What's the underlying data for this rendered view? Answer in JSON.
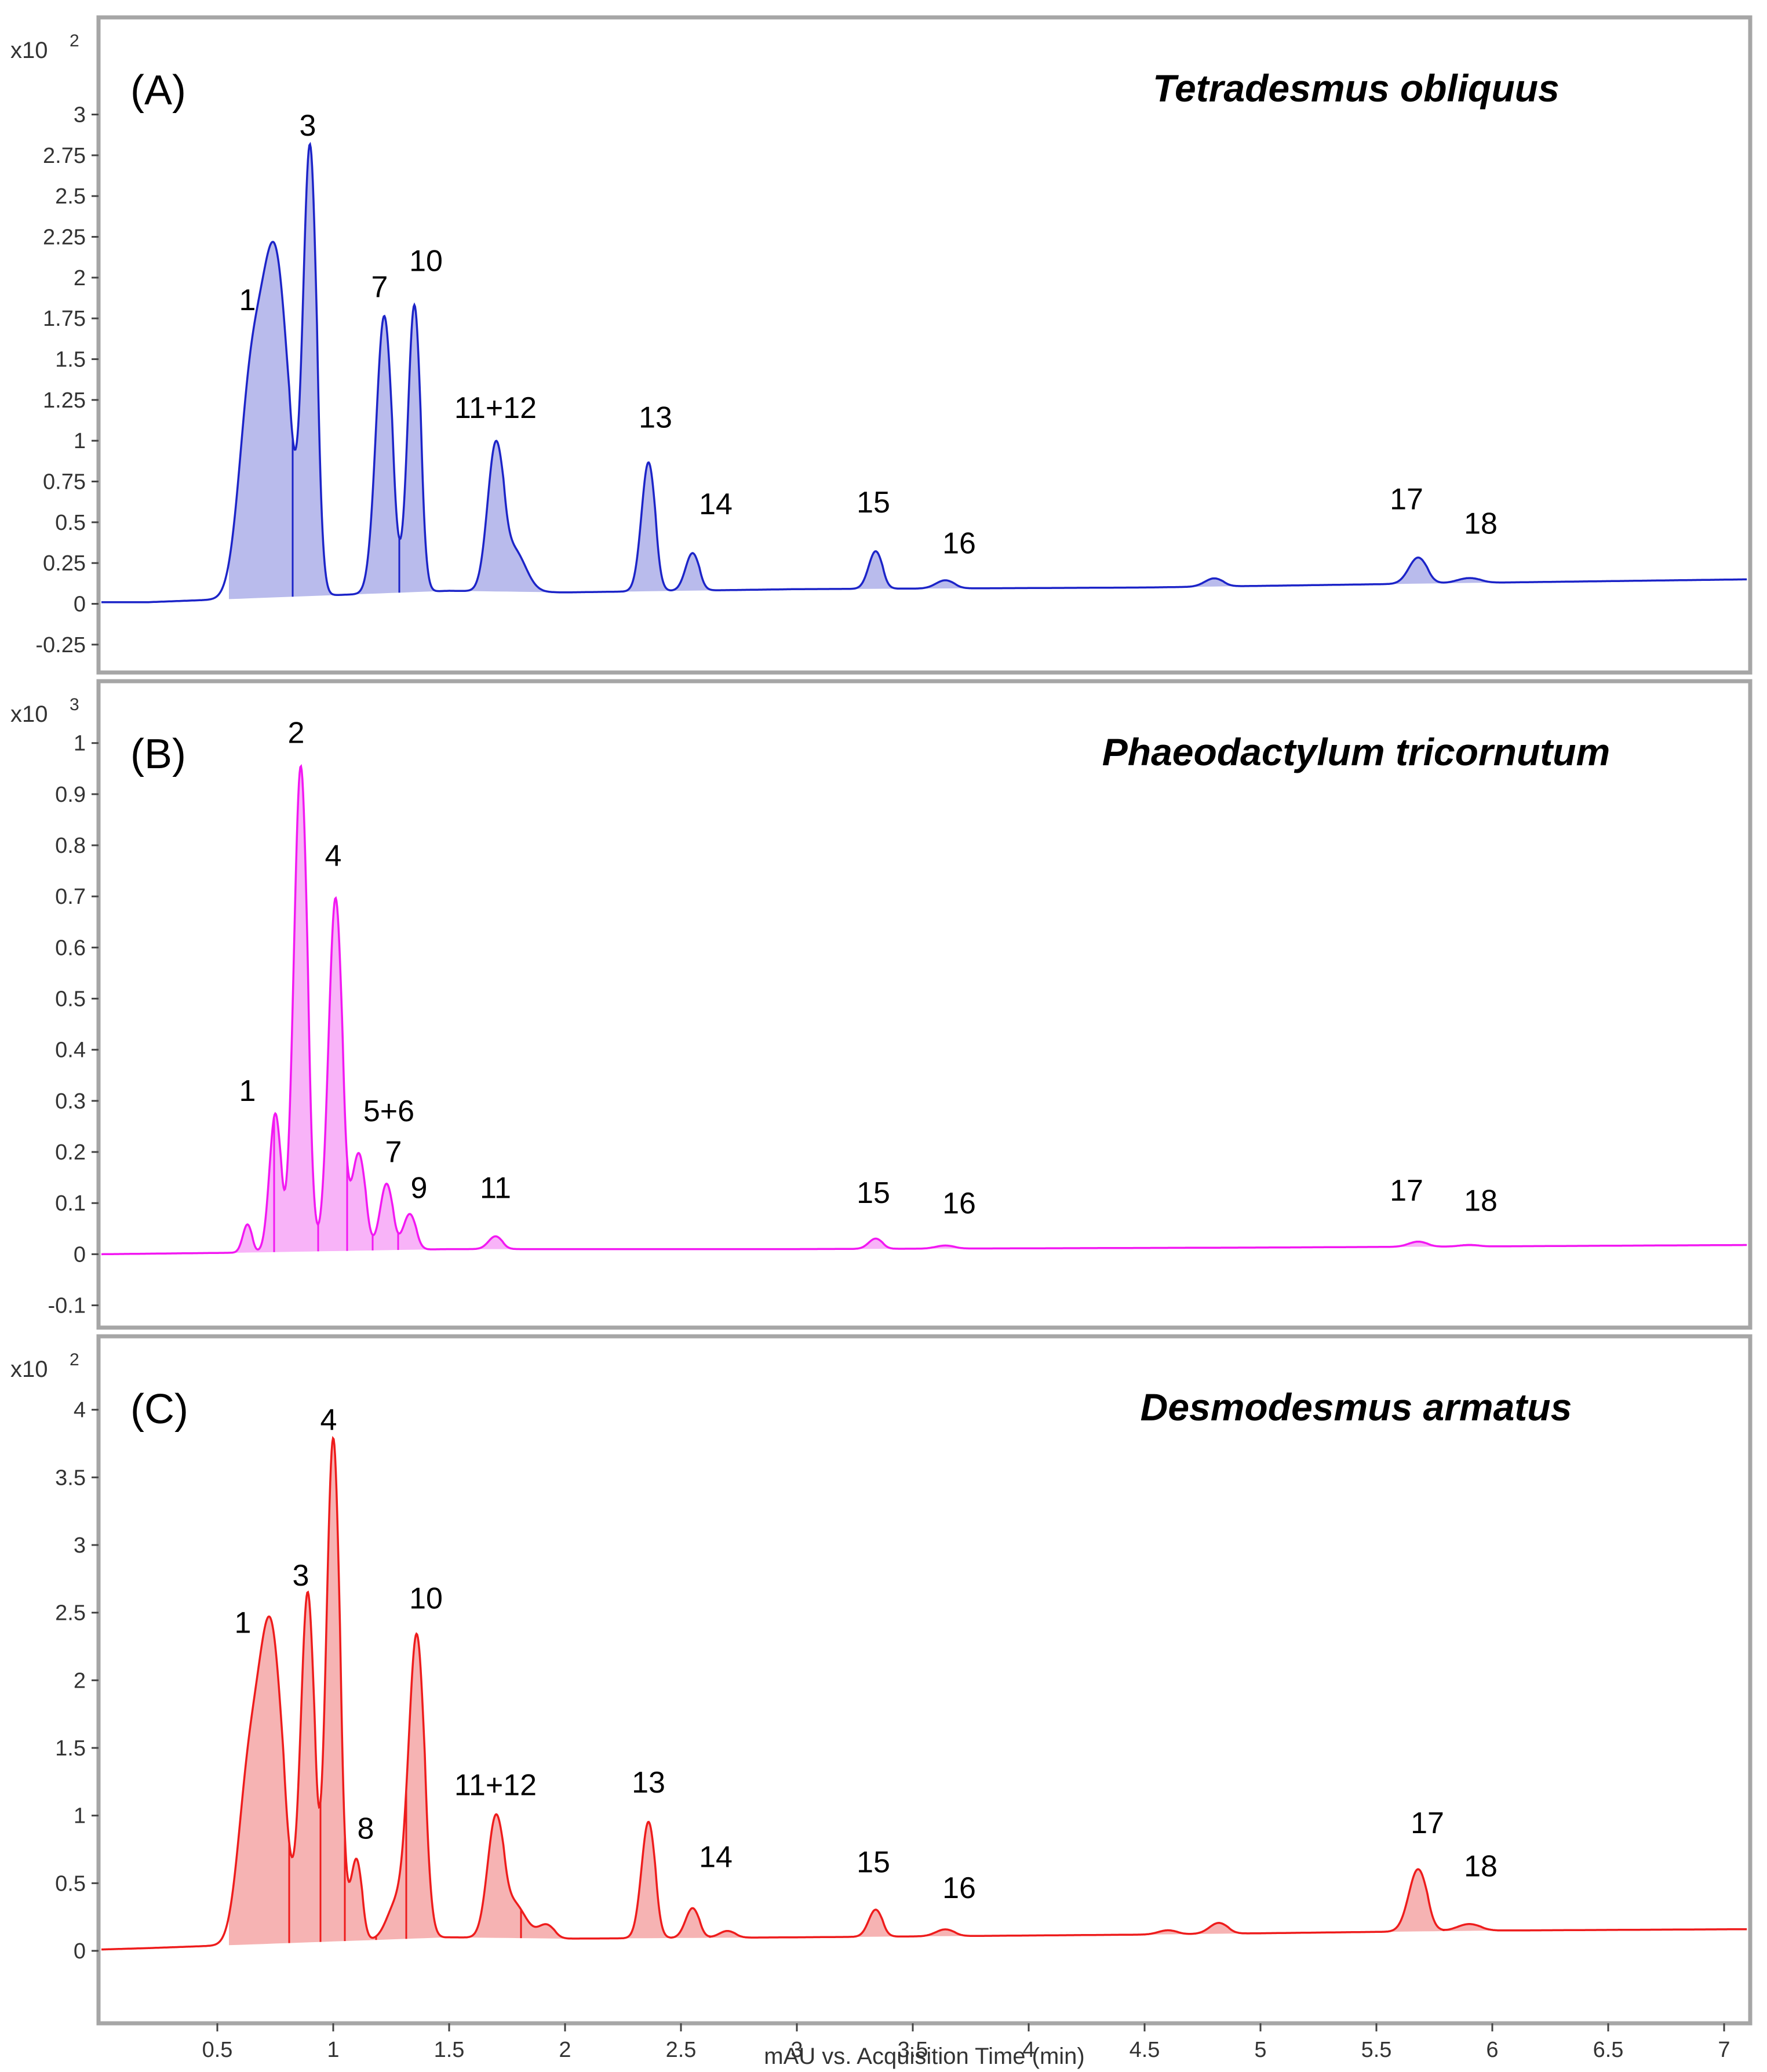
{
  "chart_data": [
    {
      "type": "area",
      "panel": "(A)",
      "title": "Tetradesmus obliquus",
      "multiplier_label": "x10",
      "multiplier_exp": "2",
      "color": "#1c24c8",
      "fill": "#b9bbec",
      "xlim": [
        0,
        7.1
      ],
      "ylim": [
        -0.35,
        3.4
      ],
      "yticks": [
        "-0.25",
        "0",
        "0.25",
        "0.5",
        "0.75",
        "1",
        "1.25",
        "1.5",
        "1.75",
        "2",
        "2.25",
        "2.5",
        "2.75",
        "3"
      ],
      "baseline": [
        [
          0,
          0.01
        ],
        [
          0.2,
          0.01
        ],
        [
          1.5,
          0.08
        ],
        [
          2.0,
          0.07
        ],
        [
          3.0,
          0.09
        ],
        [
          4.5,
          0.1
        ],
        [
          6.0,
          0.13
        ],
        [
          7.1,
          0.15
        ]
      ],
      "peaks": [
        {
          "label": "1",
          "x": 0.75,
          "h": 2.06,
          "w": 0.06,
          "text_x": 0.63,
          "text_y": 1.8,
          "shoulder": {
            "x": 0.64,
            "h": 1.1,
            "w": 0.05
          }
        },
        {
          "label": "3",
          "x": 0.9,
          "h": 2.72,
          "w": 0.03,
          "text_x": 0.89,
          "text_y": 2.87
        },
        {
          "label": "7",
          "x": 1.22,
          "h": 1.7,
          "w": 0.035,
          "text_x": 1.2,
          "text_y": 1.88
        },
        {
          "label": "10",
          "x": 1.35,
          "h": 1.76,
          "w": 0.028,
          "text_x": 1.4,
          "text_y": 2.04
        },
        {
          "label": "11+12",
          "x": 1.7,
          "h": 0.85,
          "w": 0.035,
          "text_x": 1.7,
          "text_y": 1.14,
          "shoulder": {
            "x": 1.78,
            "h": 0.25,
            "w": 0.05
          }
        },
        {
          "label": "13",
          "x": 2.36,
          "h": 0.79,
          "w": 0.03,
          "text_x": 2.39,
          "text_y": 1.08
        },
        {
          "label": "14",
          "x": 2.55,
          "h": 0.23,
          "w": 0.03,
          "text_x": 2.65,
          "text_y": 0.55
        },
        {
          "label": "15",
          "x": 3.34,
          "h": 0.23,
          "w": 0.03,
          "text_x": 3.33,
          "text_y": 0.56
        },
        {
          "label": "16",
          "x": 3.64,
          "h": 0.05,
          "w": 0.04,
          "text_x": 3.7,
          "text_y": 0.31
        },
        {
          "label": "",
          "x": 4.8,
          "h": 0.05,
          "w": 0.04
        },
        {
          "label": "17",
          "x": 5.68,
          "h": 0.16,
          "w": 0.04,
          "text_x": 5.63,
          "text_y": 0.58
        },
        {
          "label": "18",
          "x": 5.9,
          "h": 0.03,
          "w": 0.05,
          "text_x": 5.95,
          "text_y": 0.43
        }
      ]
    },
    {
      "type": "area",
      "panel": "(B)",
      "title": "Phaeodactylum tricornutum",
      "multiplier_label": "x10",
      "multiplier_exp": "3",
      "color": "#f218f2",
      "fill": "#f8b3f8",
      "xlim": [
        0,
        7.1
      ],
      "ylim": [
        -0.13,
        1.07
      ],
      "yticks": [
        "-0.1",
        "0",
        "0.1",
        "0.2",
        "0.3",
        "0.4",
        "0.5",
        "0.6",
        "0.7",
        "0.8",
        "0.9",
        "1"
      ],
      "baseline": [
        [
          0,
          0.0
        ],
        [
          0.6,
          0.003
        ],
        [
          1.5,
          0.01
        ],
        [
          3.0,
          0.01
        ],
        [
          5.0,
          0.013
        ],
        [
          7.1,
          0.018
        ]
      ],
      "peaks": [
        {
          "label": "1",
          "x": 0.75,
          "h": 0.27,
          "w": 0.025,
          "text_x": 0.63,
          "text_y": 0.3
        },
        {
          "label": "",
          "x": 0.63,
          "h": 0.055,
          "w": 0.02
        },
        {
          "label": "2",
          "x": 0.86,
          "h": 0.95,
          "w": 0.03,
          "text_x": 0.84,
          "text_y": 1.0
        },
        {
          "label": "4",
          "x": 1.01,
          "h": 0.69,
          "w": 0.03,
          "text_x": 1.0,
          "text_y": 0.76
        },
        {
          "label": "5+6",
          "x": 1.11,
          "h": 0.19,
          "w": 0.03,
          "text_x": 1.24,
          "text_y": 0.26
        },
        {
          "label": "7",
          "x": 1.23,
          "h": 0.13,
          "w": 0.028,
          "text_x": 1.26,
          "text_y": 0.18
        },
        {
          "label": "9",
          "x": 1.33,
          "h": 0.07,
          "w": 0.028,
          "text_x": 1.37,
          "text_y": 0.11
        },
        {
          "label": "11",
          "x": 1.7,
          "h": 0.025,
          "w": 0.03,
          "text_x": 1.7,
          "text_y": 0.11
        },
        {
          "label": "15",
          "x": 3.34,
          "h": 0.02,
          "w": 0.03,
          "text_x": 3.33,
          "text_y": 0.1
        },
        {
          "label": "16",
          "x": 3.64,
          "h": 0.006,
          "w": 0.04,
          "text_x": 3.7,
          "text_y": 0.08
        },
        {
          "label": "17",
          "x": 5.68,
          "h": 0.01,
          "w": 0.04,
          "text_x": 5.63,
          "text_y": 0.105
        },
        {
          "label": "18",
          "x": 5.9,
          "h": 0.003,
          "w": 0.04,
          "text_x": 5.95,
          "text_y": 0.085
        }
      ]
    },
    {
      "type": "area",
      "panel": "(C)",
      "title": "Desmodesmus armatus",
      "multiplier_label": "x10",
      "multiplier_exp": "2",
      "color": "#ee1c1c",
      "fill": "#f6b3b3",
      "xlim": [
        0,
        7.1
      ],
      "ylim": [
        -0.45,
        4.35
      ],
      "yticks": [
        "0",
        "0.5",
        "1",
        "1.5",
        "2",
        "2.5",
        "3",
        "3.5",
        "4"
      ],
      "baseline": [
        [
          0,
          0.01
        ],
        [
          0.2,
          0.02
        ],
        [
          1.5,
          0.1
        ],
        [
          2.0,
          0.09
        ],
        [
          3.0,
          0.1
        ],
        [
          4.5,
          0.12
        ],
        [
          6.0,
          0.15
        ],
        [
          7.1,
          0.16
        ]
      ],
      "peaks": [
        {
          "label": "1",
          "x": 0.73,
          "h": 2.32,
          "w": 0.055,
          "text_x": 0.61,
          "text_y": 2.35,
          "shoulder": {
            "x": 0.63,
            "h": 1.0,
            "w": 0.045
          }
        },
        {
          "label": "3",
          "x": 0.89,
          "h": 2.57,
          "w": 0.03,
          "text_x": 0.86,
          "text_y": 2.7
        },
        {
          "label": "4",
          "x": 1.0,
          "h": 3.72,
          "w": 0.03,
          "text_x": 0.98,
          "text_y": 3.85
        },
        {
          "label": "8",
          "x": 1.1,
          "h": 0.6,
          "w": 0.025,
          "text_x": 1.14,
          "text_y": 0.83
        },
        {
          "label": "",
          "x": 1.27,
          "h": 0.25,
          "w": 0.04
        },
        {
          "label": "10",
          "x": 1.36,
          "h": 2.24,
          "w": 0.035,
          "text_x": 1.4,
          "text_y": 2.53
        },
        {
          "label": "11+12",
          "x": 1.7,
          "h": 0.84,
          "w": 0.035,
          "text_x": 1.7,
          "text_y": 1.15,
          "shoulder": {
            "x": 1.78,
            "h": 0.25,
            "w": 0.05
          }
        },
        {
          "label": "",
          "x": 1.92,
          "h": 0.1,
          "w": 0.035
        },
        {
          "label": "13",
          "x": 2.36,
          "h": 0.86,
          "w": 0.03,
          "text_x": 2.36,
          "text_y": 1.17
        },
        {
          "label": "14",
          "x": 2.55,
          "h": 0.22,
          "w": 0.03,
          "text_x": 2.65,
          "text_y": 0.62
        },
        {
          "label": "",
          "x": 2.7,
          "h": 0.05,
          "w": 0.035
        },
        {
          "label": "15",
          "x": 3.34,
          "h": 0.2,
          "w": 0.03,
          "text_x": 3.33,
          "text_y": 0.58
        },
        {
          "label": "16",
          "x": 3.64,
          "h": 0.05,
          "w": 0.04,
          "text_x": 3.7,
          "text_y": 0.39
        },
        {
          "label": "",
          "x": 4.6,
          "h": 0.03,
          "w": 0.04
        },
        {
          "label": "",
          "x": 4.82,
          "h": 0.08,
          "w": 0.04
        },
        {
          "label": "17",
          "x": 5.68,
          "h": 0.46,
          "w": 0.04,
          "text_x": 5.72,
          "text_y": 0.87
        },
        {
          "label": "18",
          "x": 5.9,
          "h": 0.05,
          "w": 0.05,
          "text_x": 5.95,
          "text_y": 0.55
        }
      ]
    }
  ],
  "x_axis": {
    "label": "mAU vs. Acquisition Time (min)",
    "ticks": [
      "0.5",
      "1",
      "1.5",
      "2",
      "2.5",
      "3",
      "3.5",
      "4",
      "4.5",
      "5",
      "5.5",
      "6",
      "6.5",
      "7"
    ],
    "tick_values": [
      0.5,
      1,
      1.5,
      2,
      2.5,
      3,
      3.5,
      4,
      4.5,
      5,
      5.5,
      6,
      6.5,
      7
    ]
  },
  "frame_color": "#a6a6a6"
}
